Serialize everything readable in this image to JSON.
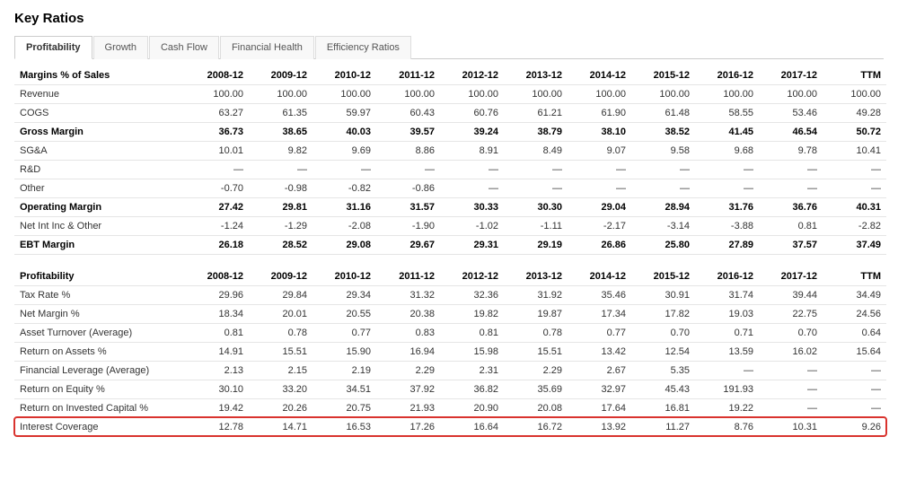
{
  "title": "Key Ratios",
  "tabs": [
    {
      "id": "profitability",
      "label": "Profitability",
      "active": true
    },
    {
      "id": "growth",
      "label": "Growth",
      "active": false
    },
    {
      "id": "cashflow",
      "label": "Cash Flow",
      "active": false
    },
    {
      "id": "finhealth",
      "label": "Financial Health",
      "active": false
    },
    {
      "id": "effratios",
      "label": "Efficiency Ratios",
      "active": false
    }
  ],
  "columns": [
    "2008-12",
    "2009-12",
    "2010-12",
    "2011-12",
    "2012-12",
    "2013-12",
    "2014-12",
    "2015-12",
    "2016-12",
    "2017-12",
    "TTM"
  ],
  "sections": [
    {
      "header": "Margins % of Sales",
      "rows": [
        {
          "label": "Revenue",
          "bold": false,
          "values": [
            "100.00",
            "100.00",
            "100.00",
            "100.00",
            "100.00",
            "100.00",
            "100.00",
            "100.00",
            "100.00",
            "100.00",
            "100.00"
          ]
        },
        {
          "label": "COGS",
          "bold": false,
          "values": [
            "63.27",
            "61.35",
            "59.97",
            "60.43",
            "60.76",
            "61.21",
            "61.90",
            "61.48",
            "58.55",
            "53.46",
            "49.28"
          ]
        },
        {
          "label": "Gross Margin",
          "bold": true,
          "values": [
            "36.73",
            "38.65",
            "40.03",
            "39.57",
            "39.24",
            "38.79",
            "38.10",
            "38.52",
            "41.45",
            "46.54",
            "50.72"
          ]
        },
        {
          "label": "SG&A",
          "bold": false,
          "values": [
            "10.01",
            "9.82",
            "9.69",
            "8.86",
            "8.91",
            "8.49",
            "9.07",
            "9.58",
            "9.68",
            "9.78",
            "10.41"
          ]
        },
        {
          "label": "R&D",
          "bold": false,
          "values": [
            "—",
            "—",
            "—",
            "—",
            "—",
            "—",
            "—",
            "—",
            "—",
            "—",
            "—"
          ]
        },
        {
          "label": "Other",
          "bold": false,
          "values": [
            "-0.70",
            "-0.98",
            "-0.82",
            "-0.86",
            "—",
            "—",
            "—",
            "—",
            "—",
            "—",
            "—"
          ]
        },
        {
          "label": "Operating Margin",
          "bold": true,
          "values": [
            "27.42",
            "29.81",
            "31.16",
            "31.57",
            "30.33",
            "30.30",
            "29.04",
            "28.94",
            "31.76",
            "36.76",
            "40.31"
          ]
        },
        {
          "label": "Net Int Inc & Other",
          "bold": false,
          "values": [
            "-1.24",
            "-1.29",
            "-2.08",
            "-1.90",
            "-1.02",
            "-1.11",
            "-2.17",
            "-3.14",
            "-3.88",
            "0.81",
            "-2.82"
          ]
        },
        {
          "label": "EBT Margin",
          "bold": true,
          "values": [
            "26.18",
            "28.52",
            "29.08",
            "29.67",
            "29.31",
            "29.19",
            "26.86",
            "25.80",
            "27.89",
            "37.57",
            "37.49"
          ]
        }
      ]
    },
    {
      "header": "Profitability",
      "rows": [
        {
          "label": "Tax Rate %",
          "bold": false,
          "values": [
            "29.96",
            "29.84",
            "29.34",
            "31.32",
            "32.36",
            "31.92",
            "35.46",
            "30.91",
            "31.74",
            "39.44",
            "34.49"
          ]
        },
        {
          "label": "Net Margin %",
          "bold": false,
          "values": [
            "18.34",
            "20.01",
            "20.55",
            "20.38",
            "19.82",
            "19.87",
            "17.34",
            "17.82",
            "19.03",
            "22.75",
            "24.56"
          ]
        },
        {
          "label": "Asset Turnover (Average)",
          "bold": false,
          "values": [
            "0.81",
            "0.78",
            "0.77",
            "0.83",
            "0.81",
            "0.78",
            "0.77",
            "0.70",
            "0.71",
            "0.70",
            "0.64"
          ]
        },
        {
          "label": "Return on Assets %",
          "bold": false,
          "values": [
            "14.91",
            "15.51",
            "15.90",
            "16.94",
            "15.98",
            "15.51",
            "13.42",
            "12.54",
            "13.59",
            "16.02",
            "15.64"
          ]
        },
        {
          "label": "Financial Leverage (Average)",
          "bold": false,
          "values": [
            "2.13",
            "2.15",
            "2.19",
            "2.29",
            "2.31",
            "2.29",
            "2.67",
            "5.35",
            "—",
            "—",
            "—"
          ]
        },
        {
          "label": "Return on Equity %",
          "bold": false,
          "values": [
            "30.10",
            "33.20",
            "34.51",
            "37.92",
            "36.82",
            "35.69",
            "32.97",
            "45.43",
            "191.93",
            "—",
            "—"
          ]
        },
        {
          "label": "Return on Invested Capital %",
          "bold": false,
          "values": [
            "19.42",
            "20.26",
            "20.75",
            "21.93",
            "20.90",
            "20.08",
            "17.64",
            "16.81",
            "19.22",
            "—",
            "—"
          ]
        },
        {
          "label": "Interest Coverage",
          "bold": false,
          "highlight": true,
          "values": [
            "12.78",
            "14.71",
            "16.53",
            "17.26",
            "16.64",
            "16.72",
            "13.92",
            "11.27",
            "8.76",
            "10.31",
            "9.26"
          ]
        }
      ]
    }
  ],
  "style": {
    "highlight_color": "#d9332e",
    "border_color": "#e5e5e5",
    "text_color": "#333333",
    "bold_color": "#000000",
    "font_family": "Verdana",
    "header_fontsize": 15,
    "body_fontsize": 11
  }
}
